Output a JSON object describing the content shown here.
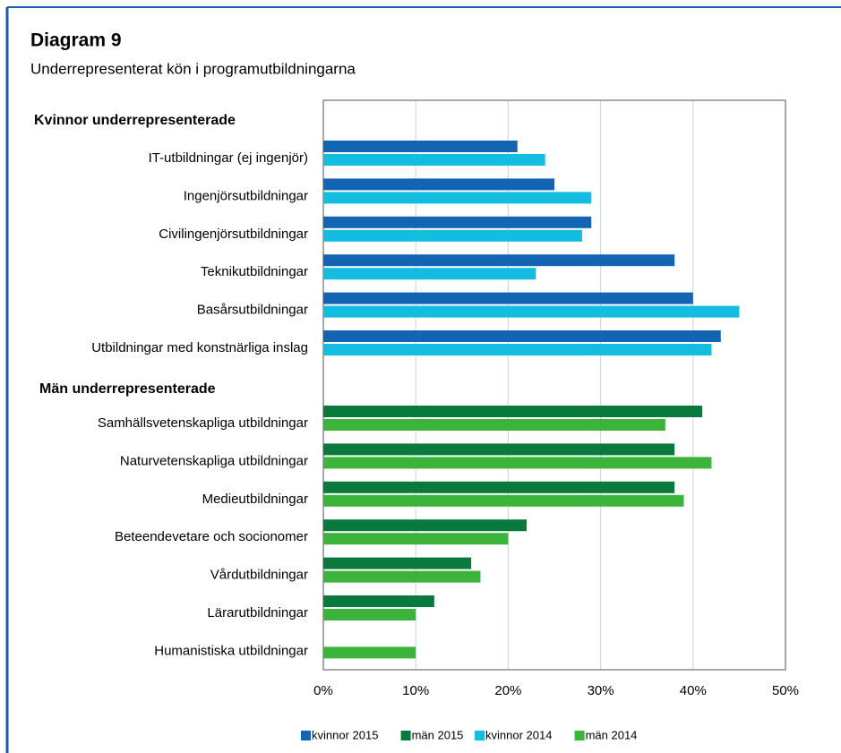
{
  "chart_data": {
    "type": "bar",
    "orientation": "horizontal",
    "title": "Diagram 9",
    "subtitle": "Underrepresenterat kön i programutbildningarna",
    "sections": [
      {
        "label": "Kvinnor underrepresenterade",
        "categories": [
          "IT-utbildningar (ej ingenjör)",
          "Ingenjörsutbildningar",
          "Civilingenjörsutbildningar",
          "Teknikutbildningar",
          "Basårsutbildningar",
          "Utbildningar med konstnärliga inslag"
        ]
      },
      {
        "label": "Män underrepresenterade",
        "categories": [
          "Samhällsvetenskapliga utbildningar",
          "Naturvetenskapliga utbildningar",
          "Medieutbildningar",
          "Beteendevetare och socionomer",
          "Vårdutbildningar",
          "Lärarutbildningar",
          "Humanistiska utbildningar"
        ]
      }
    ],
    "series": [
      {
        "name": "kvinnor 2015",
        "color": "#1464b4",
        "values": [
          21,
          25,
          29,
          38,
          40,
          43,
          null,
          null,
          null,
          null,
          null,
          null,
          null
        ]
      },
      {
        "name": "män 2015",
        "color": "#0a7a3c",
        "values": [
          null,
          null,
          null,
          null,
          null,
          null,
          41,
          38,
          38,
          22,
          16,
          12,
          null
        ]
      },
      {
        "name": "kvinnor 2014",
        "color": "#12bde0",
        "values": [
          24,
          29,
          28,
          23,
          45,
          42,
          null,
          null,
          null,
          null,
          null,
          null,
          null
        ]
      },
      {
        "name": "män 2014",
        "color": "#3cb43c",
        "values": [
          null,
          null,
          null,
          null,
          null,
          null,
          37,
          42,
          39,
          20,
          17,
          10,
          10
        ]
      }
    ],
    "xlim": [
      0,
      50
    ],
    "xticks": [
      {
        "value": 0,
        "label": "0%"
      },
      {
        "value": 10,
        "label": "10%"
      },
      {
        "value": 20,
        "label": "20%"
      },
      {
        "value": 30,
        "label": "30%"
      },
      {
        "value": 40,
        "label": "40%"
      },
      {
        "value": 50,
        "label": "50%"
      }
    ],
    "grid": true,
    "legend": "bottom"
  }
}
